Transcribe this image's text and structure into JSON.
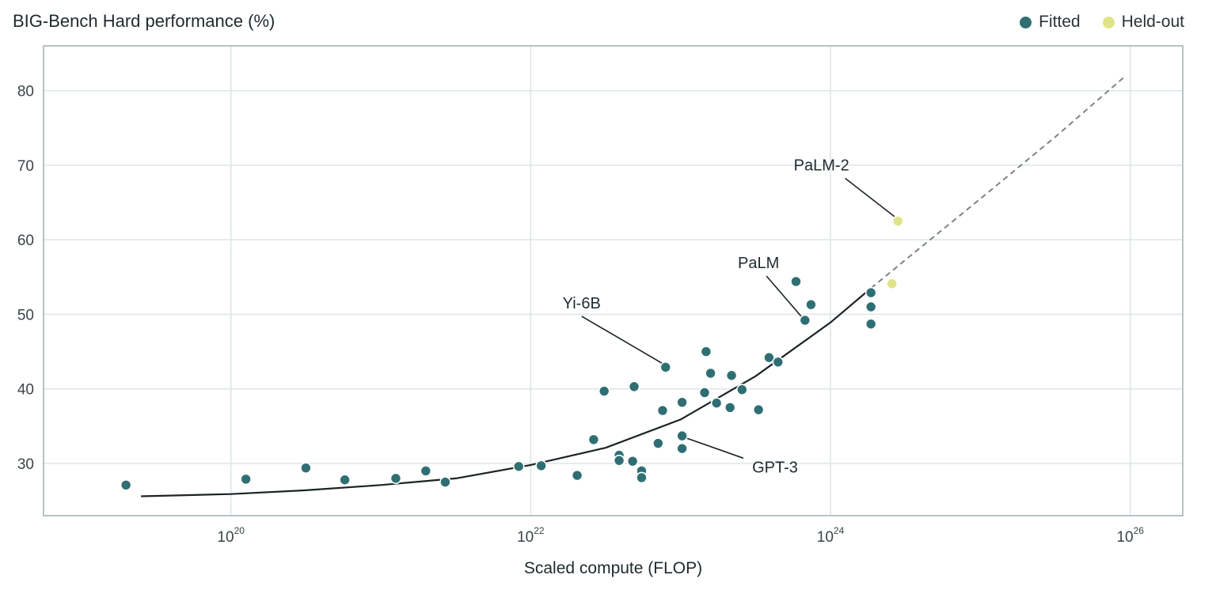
{
  "chart_data": {
    "type": "scatter",
    "title": "BIG-Bench Hard performance (%)",
    "xlabel": "Scaled compute (FLOP)",
    "ylabel": "",
    "x_scale": "log10",
    "xlim_log10": [
      18.75,
      26.35
    ],
    "ylim": [
      23,
      86
    ],
    "x_ticks_log10": [
      20,
      22,
      24,
      26
    ],
    "x_tick_labels": [
      {
        "base": "10",
        "exp": "20"
      },
      {
        "base": "10",
        "exp": "22"
      },
      {
        "base": "10",
        "exp": "24"
      },
      {
        "base": "10",
        "exp": "26"
      }
    ],
    "y_ticks": [
      30,
      40,
      50,
      60,
      70,
      80
    ],
    "y_tick_labels": [
      "30",
      "40",
      "50",
      "60",
      "70",
      "80"
    ],
    "grid": true,
    "legend_position": "top-right",
    "series": [
      {
        "name": "Fitted",
        "color": "#2f6f73",
        "points_log10x": [
          [
            19.3,
            27.1
          ],
          [
            20.1,
            27.9
          ],
          [
            20.5,
            29.4
          ],
          [
            20.76,
            27.8
          ],
          [
            21.1,
            28.0
          ],
          [
            21.3,
            29.0
          ],
          [
            21.43,
            27.5
          ],
          [
            21.92,
            29.6
          ],
          [
            22.07,
            29.7
          ],
          [
            22.31,
            28.4
          ],
          [
            22.42,
            33.2
          ],
          [
            22.49,
            39.7
          ],
          [
            22.59,
            31.1
          ],
          [
            22.59,
            30.4
          ],
          [
            22.68,
            30.3
          ],
          [
            22.69,
            40.3
          ],
          [
            22.74,
            29.0
          ],
          [
            22.74,
            28.1
          ],
          [
            22.85,
            32.7
          ],
          [
            22.88,
            37.1
          ],
          [
            22.9,
            42.9
          ],
          [
            23.01,
            38.2
          ],
          [
            23.01,
            33.7
          ],
          [
            23.01,
            32.0
          ],
          [
            23.16,
            39.5
          ],
          [
            23.17,
            45.0
          ],
          [
            23.2,
            42.1
          ],
          [
            23.24,
            38.1
          ],
          [
            23.33,
            37.5
          ],
          [
            23.34,
            41.8
          ],
          [
            23.41,
            39.9
          ],
          [
            23.52,
            37.2
          ],
          [
            23.59,
            44.2
          ],
          [
            23.65,
            43.6
          ],
          [
            23.77,
            54.4
          ],
          [
            23.83,
            49.2
          ],
          [
            23.87,
            51.3
          ],
          [
            24.27,
            52.9
          ],
          [
            24.27,
            51.0
          ],
          [
            24.27,
            48.7
          ]
        ]
      },
      {
        "name": "Held-out",
        "color": "#e0e489",
        "points_log10x": [
          [
            24.45,
            62.5
          ],
          [
            24.41,
            54.1
          ]
        ]
      }
    ],
    "fit_curve": {
      "color": "#1c2326",
      "solid_log10x": [
        [
          19.4,
          25.6
        ],
        [
          20,
          25.9
        ],
        [
          20.5,
          26.4
        ],
        [
          21,
          27.1
        ],
        [
          21.5,
          28.0
        ],
        [
          22,
          29.8
        ],
        [
          22.5,
          32.1
        ],
        [
          23,
          35.9
        ],
        [
          23.5,
          41.7
        ],
        [
          24,
          48.9
        ],
        [
          24.27,
          53.5
        ]
      ],
      "dashed_log10x": [
        [
          24.27,
          53.5
        ],
        [
          24.5,
          57.3
        ],
        [
          25,
          65.5
        ],
        [
          25.5,
          73.8
        ],
        [
          25.97,
          82.0
        ]
      ]
    },
    "annotations": [
      {
        "text": "PaLM-2",
        "label_log10x": 23.94,
        "label_y": 69.3,
        "target_log10x": 24.44,
        "target_y": 62.9
      },
      {
        "text": "PaLM",
        "label_log10x": 23.52,
        "label_y": 56.2,
        "target_log10x": 23.81,
        "target_y": 49.6
      },
      {
        "text": "Yi-6B",
        "label_log10x": 22.34,
        "label_y": 50.8,
        "target_log10x": 22.88,
        "target_y": 43.4
      },
      {
        "text": "GPT-3",
        "label_log10x": 23.63,
        "label_y": 28.8,
        "target_log10x": 23.04,
        "target_y": 33.4
      }
    ]
  }
}
